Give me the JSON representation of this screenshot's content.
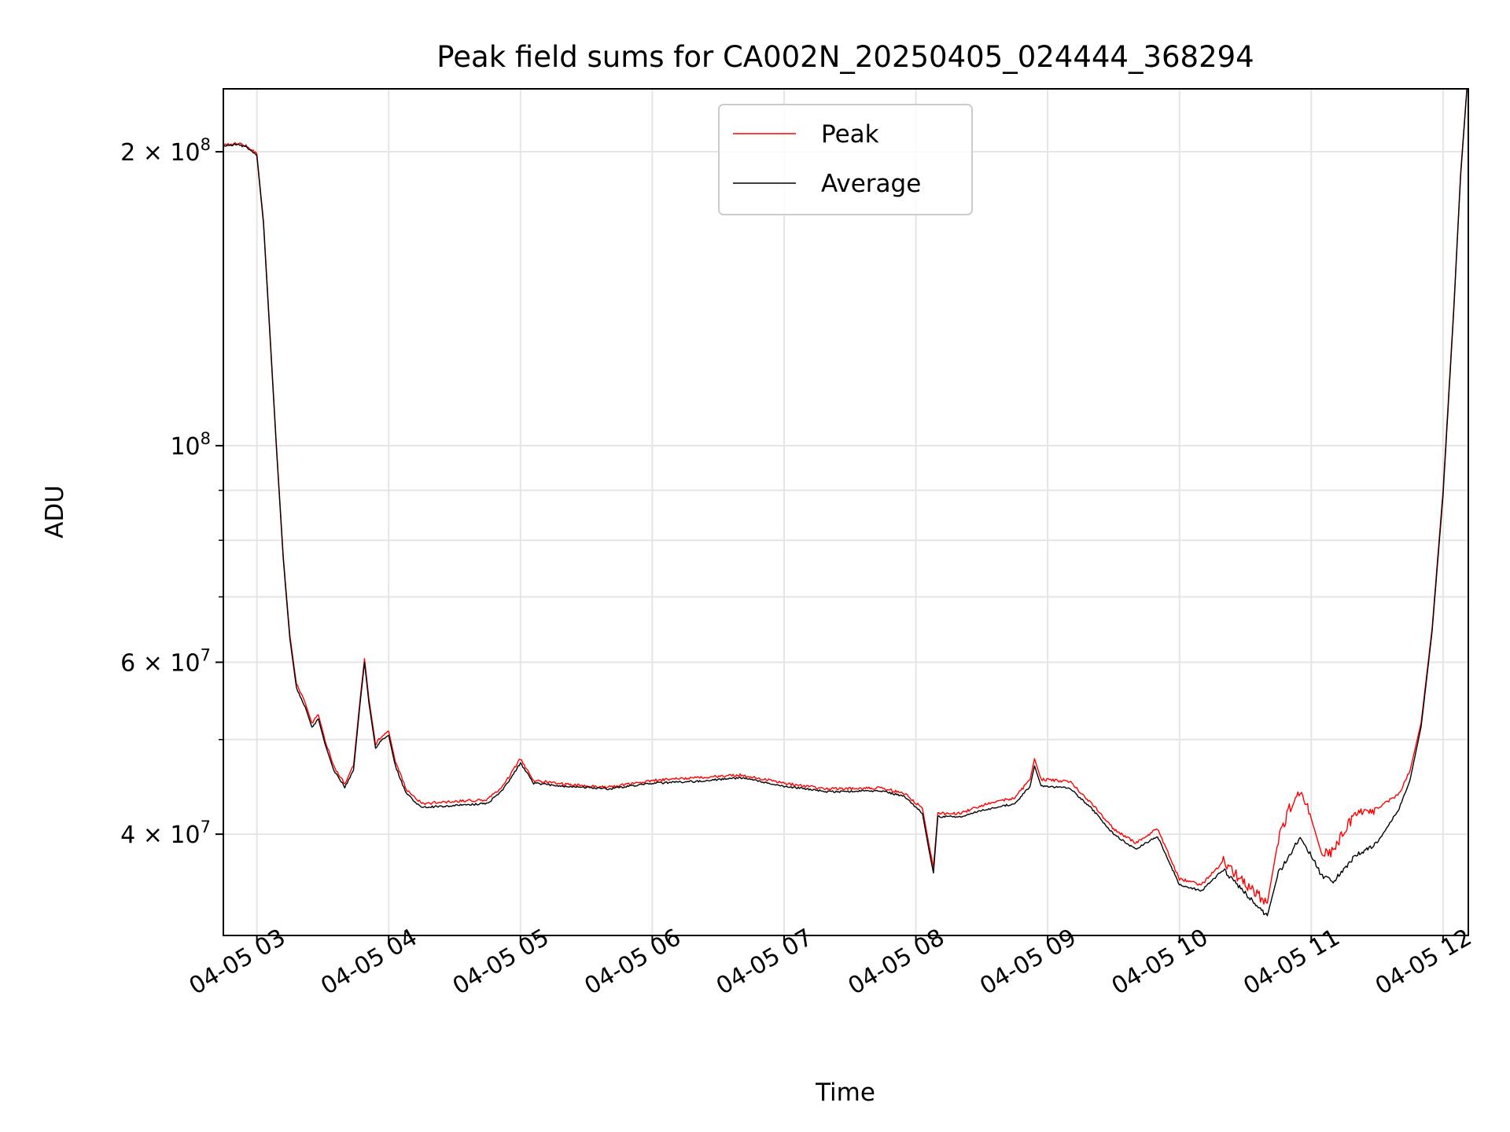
{
  "chart_data": {
    "type": "line",
    "title": "Peak field sums for CA002N_20250405_024444_368294",
    "xlabel": "Time",
    "ylabel": "ADU",
    "y_scale": "log",
    "ylim": [
      31500000,
      232000000
    ],
    "xlim": [
      "2025-04-05 02:44:44",
      "2025-04-05 12:11:30"
    ],
    "grid": true,
    "legend_position": "upper center",
    "x_ticks": [
      {
        "value": "2025-04-05 03:00",
        "label": "04-05 03"
      },
      {
        "value": "2025-04-05 04:00",
        "label": "04-05 04"
      },
      {
        "value": "2025-04-05 05:00",
        "label": "04-05 05"
      },
      {
        "value": "2025-04-05 06:00",
        "label": "04-05 06"
      },
      {
        "value": "2025-04-05 07:00",
        "label": "04-05 07"
      },
      {
        "value": "2025-04-05 08:00",
        "label": "04-05 08"
      },
      {
        "value": "2025-04-05 09:00",
        "label": "04-05 09"
      },
      {
        "value": "2025-04-05 10:00",
        "label": "04-05 10"
      },
      {
        "value": "2025-04-05 11:00",
        "label": "04-05 11"
      },
      {
        "value": "2025-04-05 12:00",
        "label": "04-05 12"
      }
    ],
    "y_major_ticks": [
      {
        "value": 40000000,
        "base": "4 × 10",
        "exp": "7"
      },
      {
        "value": 60000000,
        "base": "6 × 10",
        "exp": "7"
      },
      {
        "value": 100000000,
        "base": "10",
        "exp": "8"
      },
      {
        "value": 200000000,
        "base": "2 × 10",
        "exp": "8"
      }
    ],
    "y_minor_ticks": [
      50000000,
      70000000,
      80000000,
      90000000
    ],
    "series": [
      {
        "name": "Peak",
        "color": "#ff0000",
        "points": [
          [
            "2025-04-05 02:44:44",
            203000000
          ],
          [
            "2025-04-05 02:50",
            204000000
          ],
          [
            "2025-04-05 02:55",
            203000000
          ],
          [
            "2025-04-05 03:00",
            199000000
          ],
          [
            "2025-04-05 03:03",
            170000000
          ],
          [
            "2025-04-05 03:06",
            130000000
          ],
          [
            "2025-04-05 03:09",
            99000000
          ],
          [
            "2025-04-05 03:12",
            77000000
          ],
          [
            "2025-04-05 03:15",
            64000000
          ],
          [
            "2025-04-05 03:18",
            57000000
          ],
          [
            "2025-04-05 03:22",
            54500000
          ],
          [
            "2025-04-05 03:25",
            52000000
          ],
          [
            "2025-04-05 03:28",
            53000000
          ],
          [
            "2025-04-05 03:31",
            50000000
          ],
          [
            "2025-04-05 03:35",
            47000000
          ],
          [
            "2025-04-05 03:40",
            45000000
          ],
          [
            "2025-04-05 03:44",
            47000000
          ],
          [
            "2025-04-05 03:47",
            55000000
          ],
          [
            "2025-04-05 03:49",
            60500000
          ],
          [
            "2025-04-05 03:51",
            55000000
          ],
          [
            "2025-04-05 03:54",
            49500000
          ],
          [
            "2025-04-05 03:57",
            50500000
          ],
          [
            "2025-04-05 04:00",
            51000000
          ],
          [
            "2025-04-05 04:03",
            47500000
          ],
          [
            "2025-04-05 04:08",
            44500000
          ],
          [
            "2025-04-05 04:15",
            43000000
          ],
          [
            "2025-04-05 04:30",
            43200000
          ],
          [
            "2025-04-05 04:45",
            43400000
          ],
          [
            "2025-04-05 04:52",
            44800000
          ],
          [
            "2025-04-05 05:00",
            47800000
          ],
          [
            "2025-04-05 05:06",
            45400000
          ],
          [
            "2025-04-05 05:20",
            45000000
          ],
          [
            "2025-04-05 05:40",
            44700000
          ],
          [
            "2025-04-05 06:00",
            45400000
          ],
          [
            "2025-04-05 06:20",
            45700000
          ],
          [
            "2025-04-05 06:40",
            46000000
          ],
          [
            "2025-04-05 07:00",
            45100000
          ],
          [
            "2025-04-05 07:20",
            44500000
          ],
          [
            "2025-04-05 07:45",
            44600000
          ],
          [
            "2025-04-05 07:55",
            44000000
          ],
          [
            "2025-04-05 08:03",
            42500000
          ],
          [
            "2025-04-05 08:06",
            39000000
          ],
          [
            "2025-04-05 08:08",
            37000000
          ],
          [
            "2025-04-05 08:10",
            42000000
          ],
          [
            "2025-04-05 08:20",
            42000000
          ],
          [
            "2025-04-05 08:30",
            42800000
          ],
          [
            "2025-04-05 08:45",
            43600000
          ],
          [
            "2025-04-05 08:52",
            45500000
          ],
          [
            "2025-04-05 08:54",
            47800000
          ],
          [
            "2025-04-05 08:57",
            45500000
          ],
          [
            "2025-04-05 09:10",
            45300000
          ],
          [
            "2025-04-05 09:20",
            43000000
          ],
          [
            "2025-04-05 09:30",
            40500000
          ],
          [
            "2025-04-05 09:40",
            39200000
          ],
          [
            "2025-04-05 09:50",
            40500000
          ],
          [
            "2025-04-05 10:00",
            36000000
          ],
          [
            "2025-04-05 10:10",
            35500000
          ],
          [
            "2025-04-05 10:20",
            37500000
          ],
          [
            "2025-04-05 10:30",
            35500000
          ],
          [
            "2025-04-05 10:40",
            34000000
          ],
          [
            "2025-04-05 10:45",
            39500000
          ],
          [
            "2025-04-05 10:50",
            42500000
          ],
          [
            "2025-04-05 10:55",
            44500000
          ],
          [
            "2025-04-05 11:00",
            41500000
          ],
          [
            "2025-04-05 11:05",
            38000000
          ],
          [
            "2025-04-05 11:10",
            38500000
          ],
          [
            "2025-04-05 11:20",
            42000000
          ],
          [
            "2025-04-05 11:30",
            42500000
          ],
          [
            "2025-04-05 11:40",
            44000000
          ],
          [
            "2025-04-05 11:45",
            46500000
          ],
          [
            "2025-04-05 11:50",
            52000000
          ],
          [
            "2025-04-05 11:55",
            65000000
          ],
          [
            "2025-04-05 12:00",
            90000000
          ],
          [
            "2025-04-05 12:05",
            140000000
          ],
          [
            "2025-04-05 12:08",
            190000000
          ],
          [
            "2025-04-05 12:11",
            235000000
          ]
        ]
      },
      {
        "name": "Average",
        "color": "#000000",
        "points": [
          [
            "2025-04-05 02:44:44",
            202500000
          ],
          [
            "2025-04-05 02:50",
            203500000
          ],
          [
            "2025-04-05 02:55",
            202500000
          ],
          [
            "2025-04-05 03:00",
            198000000
          ],
          [
            "2025-04-05 03:03",
            169000000
          ],
          [
            "2025-04-05 03:06",
            129000000
          ],
          [
            "2025-04-05 03:09",
            98500000
          ],
          [
            "2025-04-05 03:12",
            76500000
          ],
          [
            "2025-04-05 03:15",
            63500000
          ],
          [
            "2025-04-05 03:18",
            56500000
          ],
          [
            "2025-04-05 03:22",
            54000000
          ],
          [
            "2025-04-05 03:25",
            51500000
          ],
          [
            "2025-04-05 03:28",
            52500000
          ],
          [
            "2025-04-05 03:31",
            49500000
          ],
          [
            "2025-04-05 03:35",
            46500000
          ],
          [
            "2025-04-05 03:40",
            44700000
          ],
          [
            "2025-04-05 03:44",
            46500000
          ],
          [
            "2025-04-05 03:47",
            54500000
          ],
          [
            "2025-04-05 03:49",
            60000000
          ],
          [
            "2025-04-05 03:51",
            54500000
          ],
          [
            "2025-04-05 03:54",
            49000000
          ],
          [
            "2025-04-05 03:57",
            50000000
          ],
          [
            "2025-04-05 04:00",
            50500000
          ],
          [
            "2025-04-05 04:03",
            47000000
          ],
          [
            "2025-04-05 04:08",
            44000000
          ],
          [
            "2025-04-05 04:15",
            42600000
          ],
          [
            "2025-04-05 04:30",
            42800000
          ],
          [
            "2025-04-05 04:45",
            43000000
          ],
          [
            "2025-04-05 04:52",
            44400000
          ],
          [
            "2025-04-05 05:00",
            47300000
          ],
          [
            "2025-04-05 05:06",
            45100000
          ],
          [
            "2025-04-05 05:20",
            44800000
          ],
          [
            "2025-04-05 05:40",
            44500000
          ],
          [
            "2025-04-05 06:00",
            45100000
          ],
          [
            "2025-04-05 06:20",
            45300000
          ],
          [
            "2025-04-05 06:40",
            45700000
          ],
          [
            "2025-04-05 07:00",
            44800000
          ],
          [
            "2025-04-05 07:20",
            44200000
          ],
          [
            "2025-04-05 07:45",
            44300000
          ],
          [
            "2025-04-05 07:55",
            43700000
          ],
          [
            "2025-04-05 08:03",
            42000000
          ],
          [
            "2025-04-05 08:06",
            38500000
          ],
          [
            "2025-04-05 08:08",
            36500000
          ],
          [
            "2025-04-05 08:10",
            41700000
          ],
          [
            "2025-04-05 08:20",
            41700000
          ],
          [
            "2025-04-05 08:30",
            42300000
          ],
          [
            "2025-04-05 08:45",
            43000000
          ],
          [
            "2025-04-05 08:52",
            44800000
          ],
          [
            "2025-04-05 08:54",
            47000000
          ],
          [
            "2025-04-05 08:57",
            44800000
          ],
          [
            "2025-04-05 09:10",
            44600000
          ],
          [
            "2025-04-05 09:20",
            42500000
          ],
          [
            "2025-04-05 09:30",
            40000000
          ],
          [
            "2025-04-05 09:40",
            38600000
          ],
          [
            "2025-04-05 09:50",
            39800000
          ],
          [
            "2025-04-05 10:00",
            35500000
          ],
          [
            "2025-04-05 10:10",
            35000000
          ],
          [
            "2025-04-05 10:20",
            36800000
          ],
          [
            "2025-04-05 10:30",
            34800000
          ],
          [
            "2025-04-05 10:40",
            33000000
          ],
          [
            "2025-04-05 10:45",
            36500000
          ],
          [
            "2025-04-05 10:50",
            38000000
          ],
          [
            "2025-04-05 10:55",
            39800000
          ],
          [
            "2025-04-05 11:00",
            38000000
          ],
          [
            "2025-04-05 11:05",
            36200000
          ],
          [
            "2025-04-05 11:10",
            35800000
          ],
          [
            "2025-04-05 11:20",
            38000000
          ],
          [
            "2025-04-05 11:30",
            39200000
          ],
          [
            "2025-04-05 11:40",
            42500000
          ],
          [
            "2025-04-05 11:45",
            45500000
          ],
          [
            "2025-04-05 11:50",
            51500000
          ],
          [
            "2025-04-05 11:55",
            64500000
          ],
          [
            "2025-04-05 12:00",
            89000000
          ],
          [
            "2025-04-05 12:05",
            139000000
          ],
          [
            "2025-04-05 12:08",
            189000000
          ],
          [
            "2025-04-05 12:11",
            234000000
          ]
        ]
      }
    ]
  }
}
